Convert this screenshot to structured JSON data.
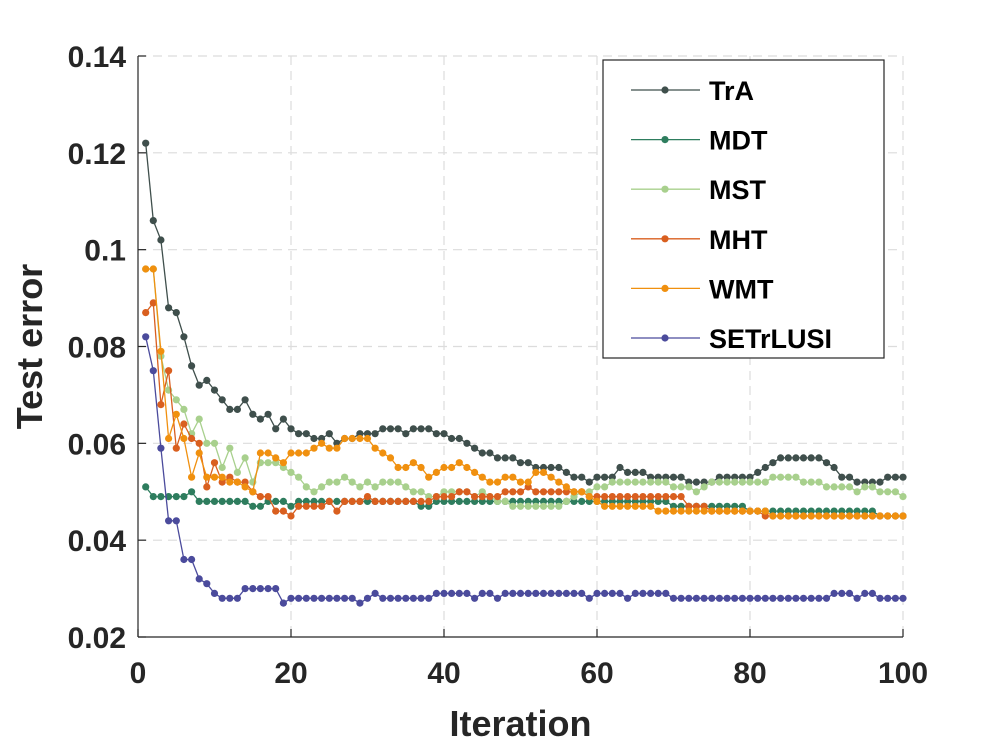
{
  "chart_data": {
    "type": "line",
    "title": "",
    "xlabel": "Iteration",
    "ylabel": "Test error",
    "xlim": [
      0,
      100
    ],
    "ylim": [
      0.02,
      0.14
    ],
    "xticks": [
      0,
      20,
      40,
      60,
      80,
      100
    ],
    "yticks": [
      0.02,
      0.04,
      0.06,
      0.08,
      0.1,
      0.12,
      0.14
    ],
    "xtick_labels": [
      "0",
      "20",
      "40",
      "60",
      "80",
      "100"
    ],
    "ytick_labels": [
      "0.02",
      "0.04",
      "0.06",
      "0.08",
      "0.1",
      "0.12",
      "0.14"
    ],
    "grid": true,
    "legend_position": "top-right",
    "series": [
      {
        "name": "TrA",
        "color": "#3f4f4c",
        "x": [
          1,
          2,
          3,
          4,
          5,
          6,
          7,
          8,
          9,
          10,
          11,
          12,
          13,
          14,
          15,
          16,
          17,
          18,
          19,
          20,
          21,
          22,
          23,
          24,
          25,
          26,
          27,
          28,
          29,
          30,
          31,
          32,
          33,
          34,
          35,
          36,
          37,
          38,
          39,
          40,
          41,
          42,
          43,
          44,
          45,
          46,
          47,
          48,
          49,
          50,
          51,
          52,
          53,
          54,
          55,
          56,
          57,
          58,
          59,
          60,
          61,
          62,
          63,
          64,
          65,
          66,
          67,
          68,
          69,
          70,
          71,
          72,
          73,
          74,
          75,
          76,
          77,
          78,
          79,
          80,
          81,
          82,
          83,
          84,
          85,
          86,
          87,
          88,
          89,
          90,
          91,
          92,
          93,
          94,
          95,
          96,
          97,
          98,
          99,
          100
        ],
        "y": [
          0.122,
          0.106,
          0.102,
          0.088,
          0.087,
          0.082,
          0.076,
          0.072,
          0.073,
          0.071,
          0.069,
          0.067,
          0.067,
          0.069,
          0.066,
          0.065,
          0.066,
          0.063,
          0.065,
          0.063,
          0.062,
          0.062,
          0.061,
          0.061,
          0.062,
          0.06,
          0.061,
          0.061,
          0.062,
          0.062,
          0.062,
          0.063,
          0.063,
          0.063,
          0.062,
          0.063,
          0.063,
          0.063,
          0.062,
          0.062,
          0.061,
          0.061,
          0.06,
          0.059,
          0.058,
          0.058,
          0.057,
          0.057,
          0.057,
          0.056,
          0.056,
          0.055,
          0.055,
          0.055,
          0.055,
          0.054,
          0.053,
          0.053,
          0.052,
          0.053,
          0.053,
          0.053,
          0.055,
          0.054,
          0.054,
          0.054,
          0.053,
          0.053,
          0.053,
          0.053,
          0.053,
          0.052,
          0.052,
          0.052,
          0.052,
          0.053,
          0.053,
          0.053,
          0.053,
          0.053,
          0.054,
          0.055,
          0.056,
          0.057,
          0.057,
          0.057,
          0.057,
          0.057,
          0.057,
          0.056,
          0.055,
          0.053,
          0.053,
          0.052,
          0.052,
          0.052,
          0.052,
          0.053,
          0.053,
          0.053
        ]
      },
      {
        "name": "MDT",
        "color": "#2e7d5e",
        "x": [
          1,
          2,
          3,
          4,
          5,
          6,
          7,
          8,
          9,
          10,
          11,
          12,
          13,
          14,
          15,
          16,
          17,
          18,
          19,
          20,
          21,
          22,
          23,
          24,
          25,
          26,
          27,
          28,
          29,
          30,
          31,
          32,
          33,
          34,
          35,
          36,
          37,
          38,
          39,
          40,
          41,
          42,
          43,
          44,
          45,
          46,
          47,
          48,
          49,
          50,
          51,
          52,
          53,
          54,
          55,
          56,
          57,
          58,
          59,
          60,
          61,
          62,
          63,
          64,
          65,
          66,
          67,
          68,
          69,
          70,
          71,
          72,
          73,
          74,
          75,
          76,
          77,
          78,
          79,
          80,
          81,
          82,
          83,
          84,
          85,
          86,
          87,
          88,
          89,
          90,
          91,
          92,
          93,
          94,
          95,
          96,
          97,
          98,
          99,
          100
        ],
        "y": [
          0.051,
          0.049,
          0.049,
          0.049,
          0.049,
          0.049,
          0.05,
          0.048,
          0.048,
          0.048,
          0.048,
          0.048,
          0.048,
          0.048,
          0.047,
          0.047,
          0.048,
          0.048,
          0.048,
          0.047,
          0.048,
          0.048,
          0.048,
          0.048,
          0.048,
          0.048,
          0.048,
          0.048,
          0.048,
          0.048,
          0.048,
          0.048,
          0.048,
          0.048,
          0.048,
          0.048,
          0.047,
          0.047,
          0.048,
          0.048,
          0.048,
          0.048,
          0.048,
          0.048,
          0.048,
          0.048,
          0.048,
          0.048,
          0.048,
          0.048,
          0.048,
          0.048,
          0.048,
          0.048,
          0.048,
          0.048,
          0.048,
          0.048,
          0.048,
          0.048,
          0.048,
          0.048,
          0.048,
          0.048,
          0.048,
          0.048,
          0.048,
          0.048,
          0.048,
          0.047,
          0.047,
          0.047,
          0.047,
          0.047,
          0.047,
          0.047,
          0.047,
          0.047,
          0.047,
          0.046,
          0.046,
          0.046,
          0.046,
          0.046,
          0.046,
          0.046,
          0.046,
          0.046,
          0.046,
          0.046,
          0.046,
          0.046,
          0.046,
          0.046,
          0.046,
          0.046,
          0.045,
          0.045,
          0.045,
          0.045
        ]
      },
      {
        "name": "MST",
        "color": "#a8d08d",
        "x": [
          1,
          2,
          3,
          4,
          5,
          6,
          7,
          8,
          9,
          10,
          11,
          12,
          13,
          14,
          15,
          16,
          17,
          18,
          19,
          20,
          21,
          22,
          23,
          24,
          25,
          26,
          27,
          28,
          29,
          30,
          31,
          32,
          33,
          34,
          35,
          36,
          37,
          38,
          39,
          40,
          41,
          42,
          43,
          44,
          45,
          46,
          47,
          48,
          49,
          50,
          51,
          52,
          53,
          54,
          55,
          56,
          57,
          58,
          59,
          60,
          61,
          62,
          63,
          64,
          65,
          66,
          67,
          68,
          69,
          70,
          71,
          72,
          73,
          74,
          75,
          76,
          77,
          78,
          79,
          80,
          81,
          82,
          83,
          84,
          85,
          86,
          87,
          88,
          89,
          90,
          91,
          92,
          93,
          94,
          95,
          96,
          97,
          98,
          99,
          100
        ],
        "y": [
          0.096,
          0.096,
          0.078,
          0.071,
          0.069,
          0.067,
          0.062,
          0.065,
          0.06,
          0.06,
          0.055,
          0.059,
          0.054,
          0.057,
          0.052,
          0.056,
          0.056,
          0.056,
          0.055,
          0.054,
          0.053,
          0.051,
          0.05,
          0.051,
          0.052,
          0.052,
          0.053,
          0.052,
          0.051,
          0.052,
          0.051,
          0.052,
          0.052,
          0.052,
          0.051,
          0.05,
          0.05,
          0.049,
          0.049,
          0.05,
          0.05,
          0.05,
          0.05,
          0.049,
          0.05,
          0.049,
          0.048,
          0.048,
          0.047,
          0.047,
          0.047,
          0.047,
          0.047,
          0.047,
          0.047,
          0.048,
          0.049,
          0.05,
          0.05,
          0.051,
          0.051,
          0.052,
          0.052,
          0.052,
          0.052,
          0.052,
          0.052,
          0.052,
          0.052,
          0.051,
          0.051,
          0.051,
          0.05,
          0.051,
          0.052,
          0.052,
          0.052,
          0.052,
          0.052,
          0.052,
          0.052,
          0.052,
          0.053,
          0.053,
          0.053,
          0.053,
          0.052,
          0.052,
          0.052,
          0.051,
          0.051,
          0.051,
          0.051,
          0.05,
          0.051,
          0.051,
          0.05,
          0.05,
          0.05,
          0.049
        ]
      },
      {
        "name": "MHT",
        "color": "#d95f1f",
        "x": [
          1,
          2,
          3,
          4,
          5,
          6,
          7,
          8,
          9,
          10,
          11,
          12,
          13,
          14,
          15,
          16,
          17,
          18,
          19,
          20,
          21,
          22,
          23,
          24,
          25,
          26,
          27,
          28,
          29,
          30,
          31,
          32,
          33,
          34,
          35,
          36,
          37,
          38,
          39,
          40,
          41,
          42,
          43,
          44,
          45,
          46,
          47,
          48,
          49,
          50,
          51,
          52,
          53,
          54,
          55,
          56,
          57,
          58,
          59,
          60,
          61,
          62,
          63,
          64,
          65,
          66,
          67,
          68,
          69,
          70,
          71,
          72,
          73,
          74,
          75,
          76,
          77,
          78,
          79,
          80,
          81,
          82,
          83,
          84,
          85,
          86,
          87,
          88,
          89,
          90,
          91,
          92,
          93,
          94,
          95,
          96,
          97,
          98,
          99,
          100
        ],
        "y": [
          0.087,
          0.089,
          0.068,
          0.075,
          0.059,
          0.064,
          0.061,
          0.06,
          0.051,
          0.056,
          0.052,
          0.053,
          0.052,
          0.052,
          0.05,
          0.049,
          0.049,
          0.046,
          0.046,
          0.045,
          0.047,
          0.047,
          0.047,
          0.047,
          0.048,
          0.046,
          0.048,
          0.048,
          0.048,
          0.049,
          0.048,
          0.048,
          0.048,
          0.048,
          0.048,
          0.048,
          0.048,
          0.048,
          0.049,
          0.049,
          0.049,
          0.05,
          0.05,
          0.049,
          0.049,
          0.049,
          0.049,
          0.05,
          0.05,
          0.05,
          0.051,
          0.05,
          0.05,
          0.05,
          0.05,
          0.05,
          0.05,
          0.05,
          0.049,
          0.049,
          0.049,
          0.049,
          0.049,
          0.049,
          0.049,
          0.049,
          0.049,
          0.049,
          0.049,
          0.049,
          0.049,
          0.047,
          0.047,
          0.047,
          0.046,
          0.046,
          0.046,
          0.046,
          0.046,
          0.046,
          0.046,
          0.045,
          0.045,
          0.045,
          0.045,
          0.045,
          0.045,
          0.045,
          0.045,
          0.045,
          0.045,
          0.045,
          0.045,
          0.045,
          0.045,
          0.045,
          0.045,
          0.045,
          0.045,
          0.045
        ]
      },
      {
        "name": "WMT",
        "color": "#f0900f",
        "x": [
          1,
          2,
          3,
          4,
          5,
          6,
          7,
          8,
          9,
          10,
          11,
          12,
          13,
          14,
          15,
          16,
          17,
          18,
          19,
          20,
          21,
          22,
          23,
          24,
          25,
          26,
          27,
          28,
          29,
          30,
          31,
          32,
          33,
          34,
          35,
          36,
          37,
          38,
          39,
          40,
          41,
          42,
          43,
          44,
          45,
          46,
          47,
          48,
          49,
          50,
          51,
          52,
          53,
          54,
          55,
          56,
          57,
          58,
          59,
          60,
          61,
          62,
          63,
          64,
          65,
          66,
          67,
          68,
          69,
          70,
          71,
          72,
          73,
          74,
          75,
          76,
          77,
          78,
          79,
          80,
          81,
          82,
          83,
          84,
          85,
          86,
          87,
          88,
          89,
          90,
          91,
          92,
          93,
          94,
          95,
          96,
          97,
          98,
          99,
          100
        ],
        "y": [
          0.096,
          0.096,
          0.079,
          0.061,
          0.066,
          0.061,
          0.053,
          0.058,
          0.053,
          0.053,
          0.053,
          0.052,
          0.052,
          0.051,
          0.05,
          0.058,
          0.058,
          0.057,
          0.056,
          0.058,
          0.058,
          0.058,
          0.059,
          0.06,
          0.059,
          0.059,
          0.061,
          0.061,
          0.061,
          0.061,
          0.059,
          0.058,
          0.057,
          0.055,
          0.055,
          0.056,
          0.055,
          0.053,
          0.054,
          0.055,
          0.055,
          0.056,
          0.055,
          0.054,
          0.053,
          0.052,
          0.052,
          0.053,
          0.053,
          0.052,
          0.052,
          0.054,
          0.054,
          0.053,
          0.052,
          0.051,
          0.05,
          0.05,
          0.049,
          0.048,
          0.047,
          0.047,
          0.047,
          0.047,
          0.047,
          0.047,
          0.047,
          0.046,
          0.046,
          0.046,
          0.046,
          0.046,
          0.046,
          0.046,
          0.046,
          0.046,
          0.046,
          0.046,
          0.046,
          0.046,
          0.046,
          0.046,
          0.045,
          0.045,
          0.045,
          0.045,
          0.045,
          0.045,
          0.045,
          0.045,
          0.045,
          0.045,
          0.045,
          0.045,
          0.045,
          0.045,
          0.045,
          0.045,
          0.045,
          0.045
        ]
      },
      {
        "name": "SETrLUSI",
        "color": "#4b4b9c",
        "x": [
          1,
          2,
          3,
          4,
          5,
          6,
          7,
          8,
          9,
          10,
          11,
          12,
          13,
          14,
          15,
          16,
          17,
          18,
          19,
          20,
          21,
          22,
          23,
          24,
          25,
          26,
          27,
          28,
          29,
          30,
          31,
          32,
          33,
          34,
          35,
          36,
          37,
          38,
          39,
          40,
          41,
          42,
          43,
          44,
          45,
          46,
          47,
          48,
          49,
          50,
          51,
          52,
          53,
          54,
          55,
          56,
          57,
          58,
          59,
          60,
          61,
          62,
          63,
          64,
          65,
          66,
          67,
          68,
          69,
          70,
          71,
          72,
          73,
          74,
          75,
          76,
          77,
          78,
          79,
          80,
          81,
          82,
          83,
          84,
          85,
          86,
          87,
          88,
          89,
          90,
          91,
          92,
          93,
          94,
          95,
          96,
          97,
          98,
          99,
          100
        ],
        "y": [
          0.082,
          0.075,
          0.059,
          0.044,
          0.044,
          0.036,
          0.036,
          0.032,
          0.031,
          0.029,
          0.028,
          0.028,
          0.028,
          0.03,
          0.03,
          0.03,
          0.03,
          0.03,
          0.027,
          0.028,
          0.028,
          0.028,
          0.028,
          0.028,
          0.028,
          0.028,
          0.028,
          0.028,
          0.027,
          0.028,
          0.029,
          0.028,
          0.028,
          0.028,
          0.028,
          0.028,
          0.028,
          0.028,
          0.029,
          0.029,
          0.029,
          0.029,
          0.029,
          0.028,
          0.029,
          0.029,
          0.028,
          0.029,
          0.029,
          0.029,
          0.029,
          0.029,
          0.029,
          0.029,
          0.029,
          0.029,
          0.029,
          0.029,
          0.028,
          0.029,
          0.029,
          0.029,
          0.029,
          0.028,
          0.029,
          0.029,
          0.029,
          0.029,
          0.029,
          0.028,
          0.028,
          0.028,
          0.028,
          0.028,
          0.028,
          0.028,
          0.028,
          0.028,
          0.028,
          0.028,
          0.028,
          0.028,
          0.028,
          0.028,
          0.028,
          0.028,
          0.028,
          0.028,
          0.028,
          0.028,
          0.029,
          0.029,
          0.029,
          0.028,
          0.029,
          0.029,
          0.028,
          0.028,
          0.028,
          0.028
        ]
      }
    ]
  }
}
